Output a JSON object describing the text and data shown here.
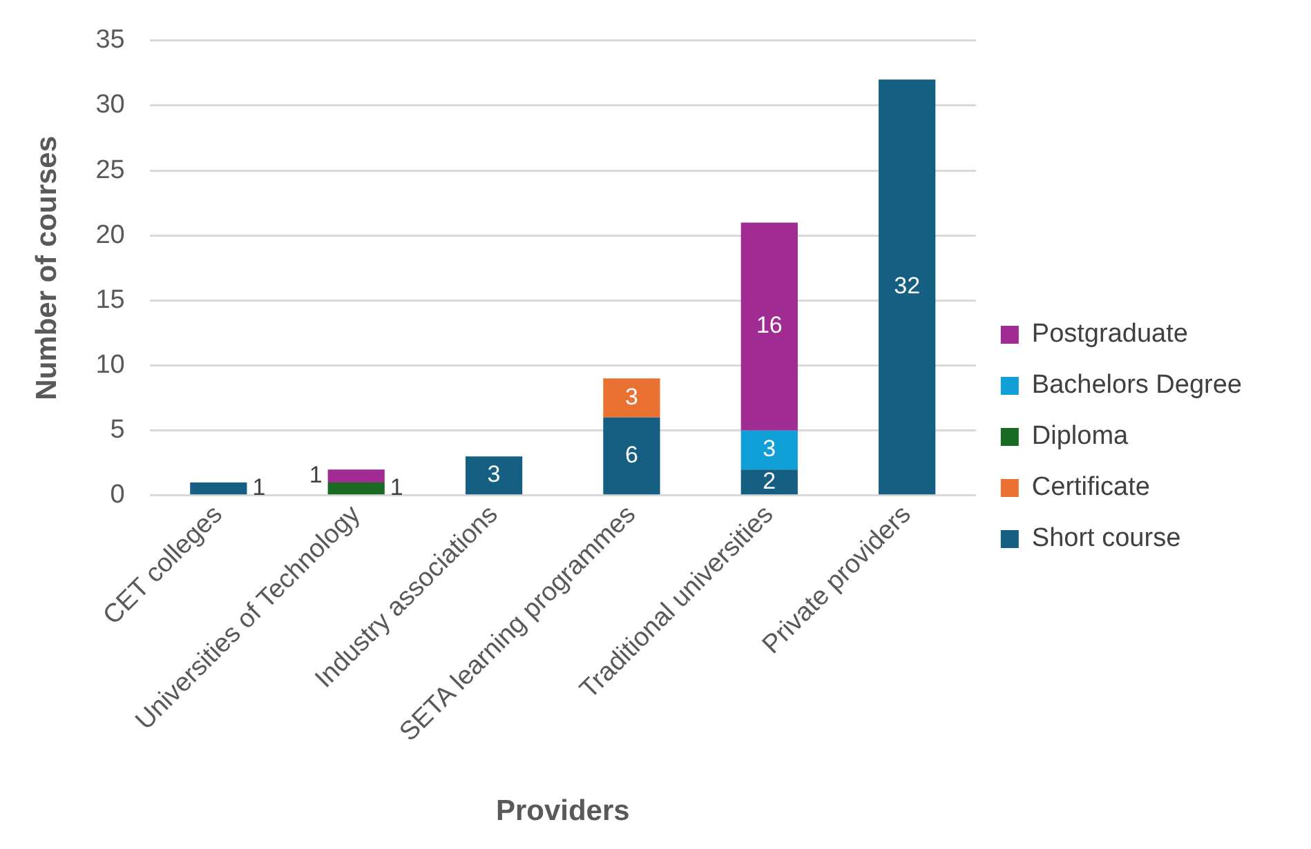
{
  "chart_data": {
    "type": "bar",
    "stacked": true,
    "xlabel": "Providers",
    "ylabel": "Number of courses",
    "categories": [
      "CET colleges",
      "Universities of Technology",
      "Industry associations",
      "SETA learning programmes",
      "Traditional universities",
      "Private providers"
    ],
    "series": [
      {
        "name": "Short course",
        "color": "#155f82",
        "values": [
          1,
          null,
          3,
          6,
          2,
          32
        ]
      },
      {
        "name": "Certificate",
        "color": "#e97132",
        "values": [
          null,
          null,
          null,
          3,
          null,
          null
        ]
      },
      {
        "name": "Diploma",
        "color": "#196b24",
        "values": [
          null,
          1,
          null,
          null,
          null,
          null
        ]
      },
      {
        "name": "Bachelors Degree",
        "color": "#0f9ed5",
        "values": [
          null,
          null,
          null,
          null,
          3,
          null
        ]
      },
      {
        "name": "Postgraduate",
        "color": "#a02b93",
        "values": [
          null,
          1,
          null,
          null,
          16,
          null
        ]
      }
    ],
    "ylim": [
      0,
      35
    ],
    "yticks": [
      0,
      5,
      10,
      15,
      20,
      25,
      30,
      35
    ],
    "grid": "y",
    "legend": "right",
    "data_labels": true
  }
}
